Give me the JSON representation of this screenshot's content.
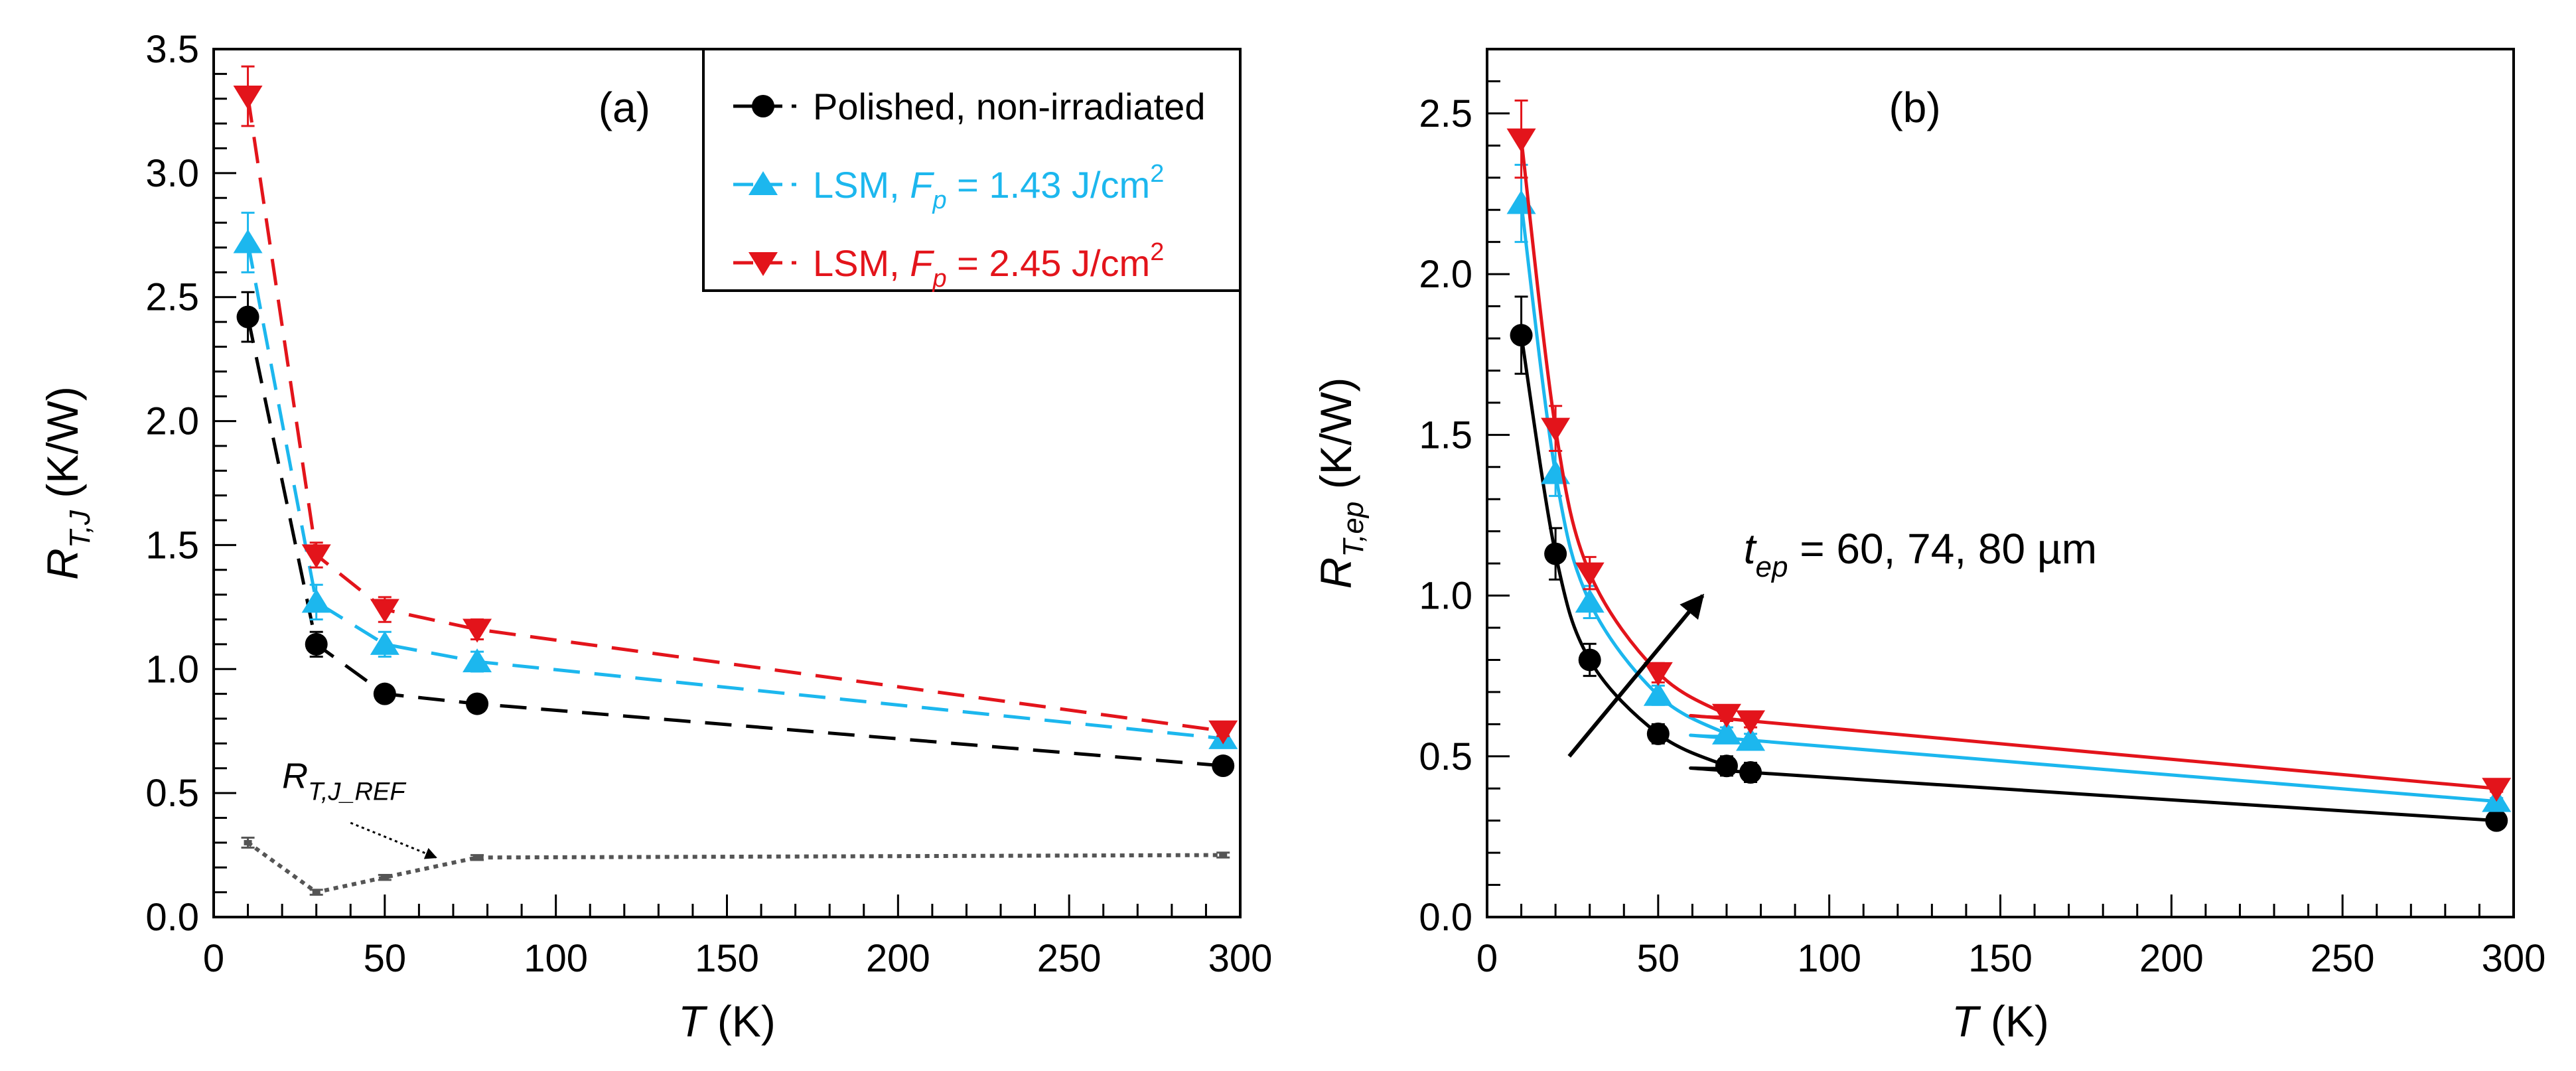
{
  "colors": {
    "black": "#000000",
    "cyan": "#1cb7ee",
    "red": "#e3141b",
    "ref": "#555555"
  },
  "chart_data": [
    {
      "type": "line",
      "panel_label": "(a)",
      "xlabel": "T (K)",
      "xlabel_var": "T",
      "xlabel_unit": " (K)",
      "ylabel_var": "R",
      "ylabel_sub": "T,J",
      "ylabel_unit": " (K/W)",
      "xlim": [
        0,
        300
      ],
      "ylim": [
        0,
        3.5
      ],
      "xticks": [
        0,
        50,
        100,
        150,
        200,
        250,
        300
      ],
      "xtick_labels": [
        "0",
        "50",
        "100",
        "150",
        "200",
        "250",
        "300"
      ],
      "yticks": [
        0,
        0.5,
        1.0,
        1.5,
        2.0,
        2.5,
        3.0,
        3.5
      ],
      "ytick_labels": [
        "0.0",
        "0.5",
        "1.0",
        "1.5",
        "2.0",
        "2.5",
        "3.0",
        "3.5"
      ],
      "legend_position": "top-right",
      "legend": [
        {
          "text": "Polished, non-irradiated",
          "color_key": "black",
          "marker": "circle"
        },
        {
          "text": "LSM, ",
          "var": "F",
          "sub": "p",
          "rest": " = 1.43 J/cm",
          "sup": "2",
          "color_key": "cyan",
          "marker": "triangle-up"
        },
        {
          "text": "LSM, ",
          "var": "F",
          "sub": "p",
          "rest": " = 2.45 J/cm",
          "sup": "2",
          "color_key": "red",
          "marker": "triangle-down"
        }
      ],
      "series": [
        {
          "name": "Polished, non-irradiated",
          "color_key": "black",
          "marker": "circle",
          "style": "dashed",
          "x": [
            10,
            30,
            50,
            77,
            295
          ],
          "y": [
            2.42,
            1.1,
            0.9,
            0.86,
            0.61
          ],
          "err": [
            0.1,
            0.05,
            0.03,
            0.03,
            0.02
          ]
        },
        {
          "name": "LSM, Fp = 1.43 J/cm2",
          "color_key": "cyan",
          "marker": "triangle-up",
          "style": "dashed",
          "x": [
            10,
            30,
            50,
            77,
            295
          ],
          "y": [
            2.72,
            1.27,
            1.1,
            1.03,
            0.72
          ],
          "err": [
            0.12,
            0.07,
            0.05,
            0.04,
            0.02
          ]
        },
        {
          "name": "LSM, Fp = 2.45 J/cm2",
          "color_key": "red",
          "marker": "triangle-down",
          "style": "dashed",
          "x": [
            10,
            30,
            50,
            77,
            295
          ],
          "y": [
            3.31,
            1.46,
            1.24,
            1.16,
            0.75
          ],
          "err": [
            0.12,
            0.05,
            0.05,
            0.04,
            0.02
          ]
        },
        {
          "name": "R_T,J_REF",
          "color_key": "ref",
          "marker": "small",
          "style": "dotted",
          "x": [
            10,
            30,
            50,
            77,
            295
          ],
          "y": [
            0.3,
            0.1,
            0.16,
            0.24,
            0.25
          ],
          "err": [
            0.02,
            0.01,
            0.01,
            0.01,
            0.01
          ]
        }
      ],
      "annotation": {
        "var": "R",
        "sub": "T,J_REF",
        "from": [
          40,
          0.38
        ],
        "to": [
          65,
          0.24
        ]
      }
    },
    {
      "type": "line",
      "panel_label": "(b)",
      "xlabel": "T (K)",
      "xlabel_var": "T",
      "xlabel_unit": " (K)",
      "ylabel_var": "R",
      "ylabel_sub": "T,ep",
      "ylabel_unit": " (K/W)",
      "xlim": [
        0,
        300
      ],
      "ylim": [
        0,
        2.7
      ],
      "xticks": [
        0,
        50,
        100,
        150,
        200,
        250,
        300
      ],
      "xtick_labels": [
        "0",
        "50",
        "100",
        "150",
        "200",
        "250",
        "300"
      ],
      "yticks": [
        0,
        0.5,
        1.0,
        1.5,
        2.0,
        2.5
      ],
      "ytick_labels": [
        "0.0",
        "0.5",
        "1.0",
        "1.5",
        "2.0",
        "2.5"
      ],
      "series": [
        {
          "name": "t_ep = 60 µm",
          "color_key": "black",
          "marker": "circle",
          "style": "solid",
          "x": [
            10,
            20,
            30,
            50,
            70,
            77,
            295
          ],
          "y": [
            1.81,
            1.13,
            0.8,
            0.57,
            0.47,
            0.45,
            0.3
          ],
          "err": [
            0.12,
            0.08,
            0.05,
            0.03,
            0.03,
            0.03,
            0.01
          ]
        },
        {
          "name": "t_ep = 74 µm",
          "color_key": "cyan",
          "marker": "triangle-up",
          "style": "solid",
          "x": [
            10,
            20,
            30,
            50,
            70,
            77,
            295
          ],
          "y": [
            2.22,
            1.38,
            0.98,
            0.69,
            0.57,
            0.55,
            0.36
          ],
          "err": [
            0.12,
            0.07,
            0.05,
            0.03,
            0.02,
            0.02,
            0.01
          ]
        },
        {
          "name": "t_ep = 80 µm",
          "color_key": "red",
          "marker": "triangle-down",
          "style": "solid",
          "x": [
            10,
            20,
            30,
            50,
            70,
            77,
            295
          ],
          "y": [
            2.42,
            1.52,
            1.07,
            0.76,
            0.63,
            0.61,
            0.4
          ],
          "err": [
            0.12,
            0.07,
            0.05,
            0.03,
            0.02,
            0.02,
            0.01
          ]
        }
      ],
      "annotation": {
        "var": "t",
        "sub": "ep",
        "rest": " = 60, 74, 80 µm",
        "from": [
          24,
          0.5
        ],
        "to": [
          63,
          1.0
        ],
        "text_at": [
          75,
          1.1
        ]
      }
    }
  ]
}
